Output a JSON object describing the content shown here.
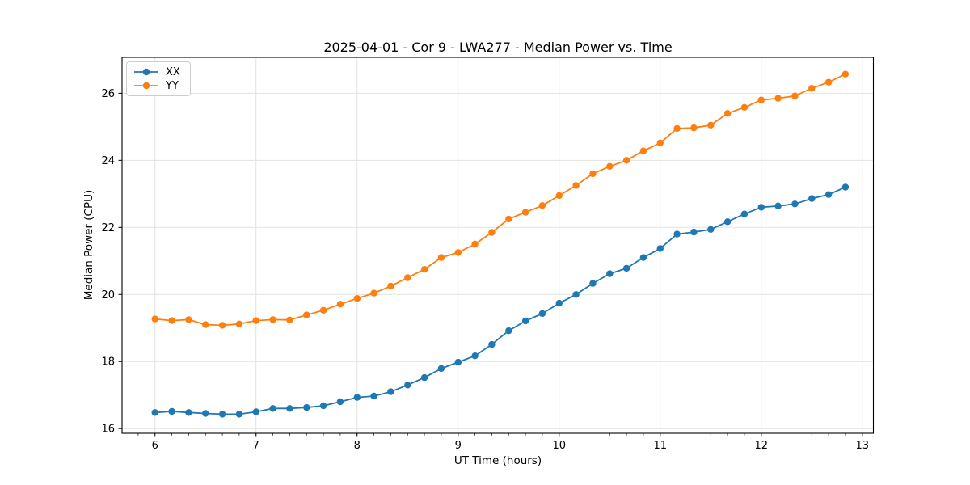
{
  "chart_data": {
    "type": "line",
    "title": "2025-04-01 - Cor 9 - LWA277 - Median Power vs. Time",
    "xlabel": "UT Time (hours)",
    "ylabel": "Median Power (CPU)",
    "legend_position": "upper left",
    "grid": true,
    "marker": "circle",
    "xlim": [
      5.674,
      13.11
    ],
    "ylim": [
      15.86,
      27.07
    ],
    "xticks": [
      6,
      7,
      8,
      9,
      10,
      11,
      12,
      13
    ],
    "yticks": [
      16,
      18,
      20,
      22,
      24,
      26
    ],
    "x_minor_step_hours": 0.16667,
    "x": [
      6.0,
      6.167,
      6.333,
      6.5,
      6.667,
      6.833,
      7.0,
      7.167,
      7.333,
      7.5,
      7.667,
      7.833,
      8.0,
      8.167,
      8.333,
      8.5,
      8.667,
      8.833,
      9.0,
      9.167,
      9.333,
      9.5,
      9.667,
      9.833,
      10.0,
      10.167,
      10.333,
      10.5,
      10.667,
      10.833,
      11.0,
      11.167,
      11.333,
      11.5,
      11.667,
      11.833,
      12.0,
      12.167,
      12.333,
      12.5,
      12.667,
      12.833
    ],
    "series": [
      {
        "name": "XX",
        "color": "#1f77b4",
        "values": [
          16.48,
          16.51,
          16.48,
          16.45,
          16.43,
          16.43,
          16.5,
          16.6,
          16.6,
          16.63,
          16.68,
          16.8,
          16.93,
          16.97,
          17.1,
          17.3,
          17.52,
          17.79,
          17.98,
          18.17,
          18.51,
          18.92,
          19.21,
          19.43,
          19.74,
          20.0,
          20.33,
          20.62,
          20.78,
          21.1,
          21.37,
          21.8,
          21.86,
          21.94,
          22.17,
          22.4,
          22.6,
          22.64,
          22.7,
          22.86,
          22.98,
          23.2
        ]
      },
      {
        "name": "YY",
        "color": "#ff7f0e",
        "values": [
          19.27,
          19.22,
          19.25,
          19.1,
          19.08,
          19.12,
          19.22,
          19.25,
          19.24,
          19.39,
          19.53,
          19.71,
          19.88,
          20.04,
          20.25,
          20.5,
          20.75,
          21.1,
          21.25,
          21.5,
          21.85,
          22.25,
          22.45,
          22.65,
          22.95,
          23.25,
          23.6,
          23.82,
          24.0,
          24.28,
          24.52,
          24.95,
          24.97,
          25.05,
          25.4,
          25.58,
          25.8,
          25.85,
          25.92,
          26.15,
          26.33,
          26.57
        ]
      }
    ]
  },
  "colors": {
    "background": "#ffffff",
    "plot_background": "#ffffff",
    "grid": "#e2e2e2",
    "axis": "#000000",
    "tick_text": "#000000",
    "legend_border": "#cccccc"
  }
}
